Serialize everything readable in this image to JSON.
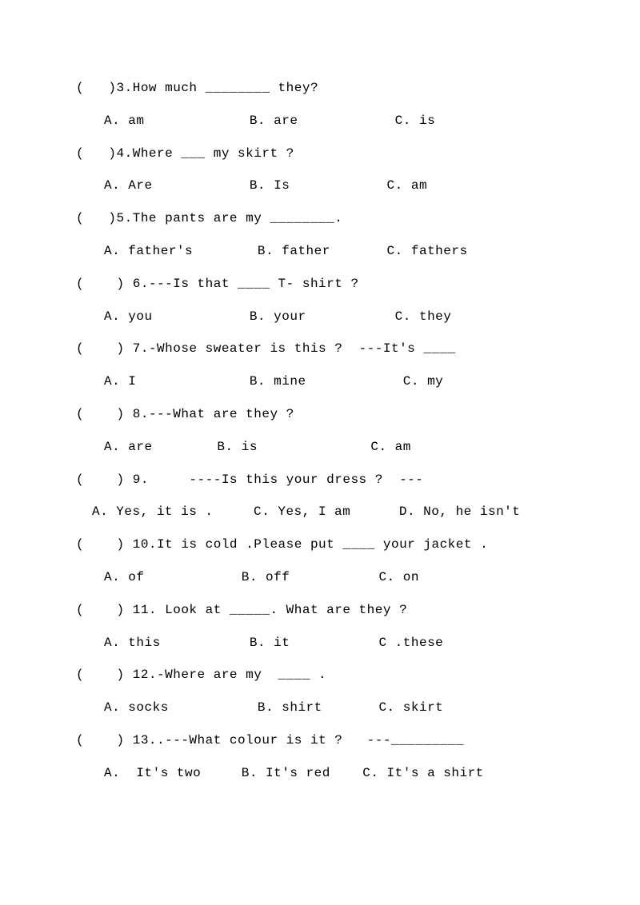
{
  "questions": [
    {
      "prompt": "(   )3.How much ________ they?",
      "answers": "A. am             B. are            C. is"
    },
    {
      "prompt": "(   )4.Where ___ my skirt ?",
      "answers": "A. Are            B. Is            C. am"
    },
    {
      "prompt": "(   )5.The pants are my ________.",
      "answers": "A. father's        B. father       C. fathers"
    },
    {
      "prompt": "(    ) 6.---Is that ____ T- shirt ?",
      "answers": "A. you            B. your           C. they"
    },
    {
      "prompt": "(    ) 7.-Whose sweater is this ?  ---It's ____",
      "answers": "A. I              B. mine            C. my"
    },
    {
      "prompt": "(    ) 8.---What are they ?",
      "answers": "A. are        B. is              C. am"
    },
    {
      "prompt": "(    ) 9.     ----Is this your dress ?  ---",
      "answers": "A. Yes, it is .     C. Yes, I am      D. No, he isn't",
      "noIndent": true
    },
    {
      "prompt": "(    ) 10.It is cold .Please put ____ your jacket .",
      "answers": "A. of            B. off           C. on"
    },
    {
      "prompt": "(    ) 11. Look at _____. What are they ?",
      "answers": "A. this           B. it           C .these"
    },
    {
      "prompt": "(    ) 12.-Where are my  ____ .",
      "answers": "A. socks           B. shirt       C. skirt"
    },
    {
      "prompt": "(    ) 13..---What colour is it ?   ---_________",
      "answers": "A.  It's two     B. It's red    C. It's a shirt"
    }
  ]
}
